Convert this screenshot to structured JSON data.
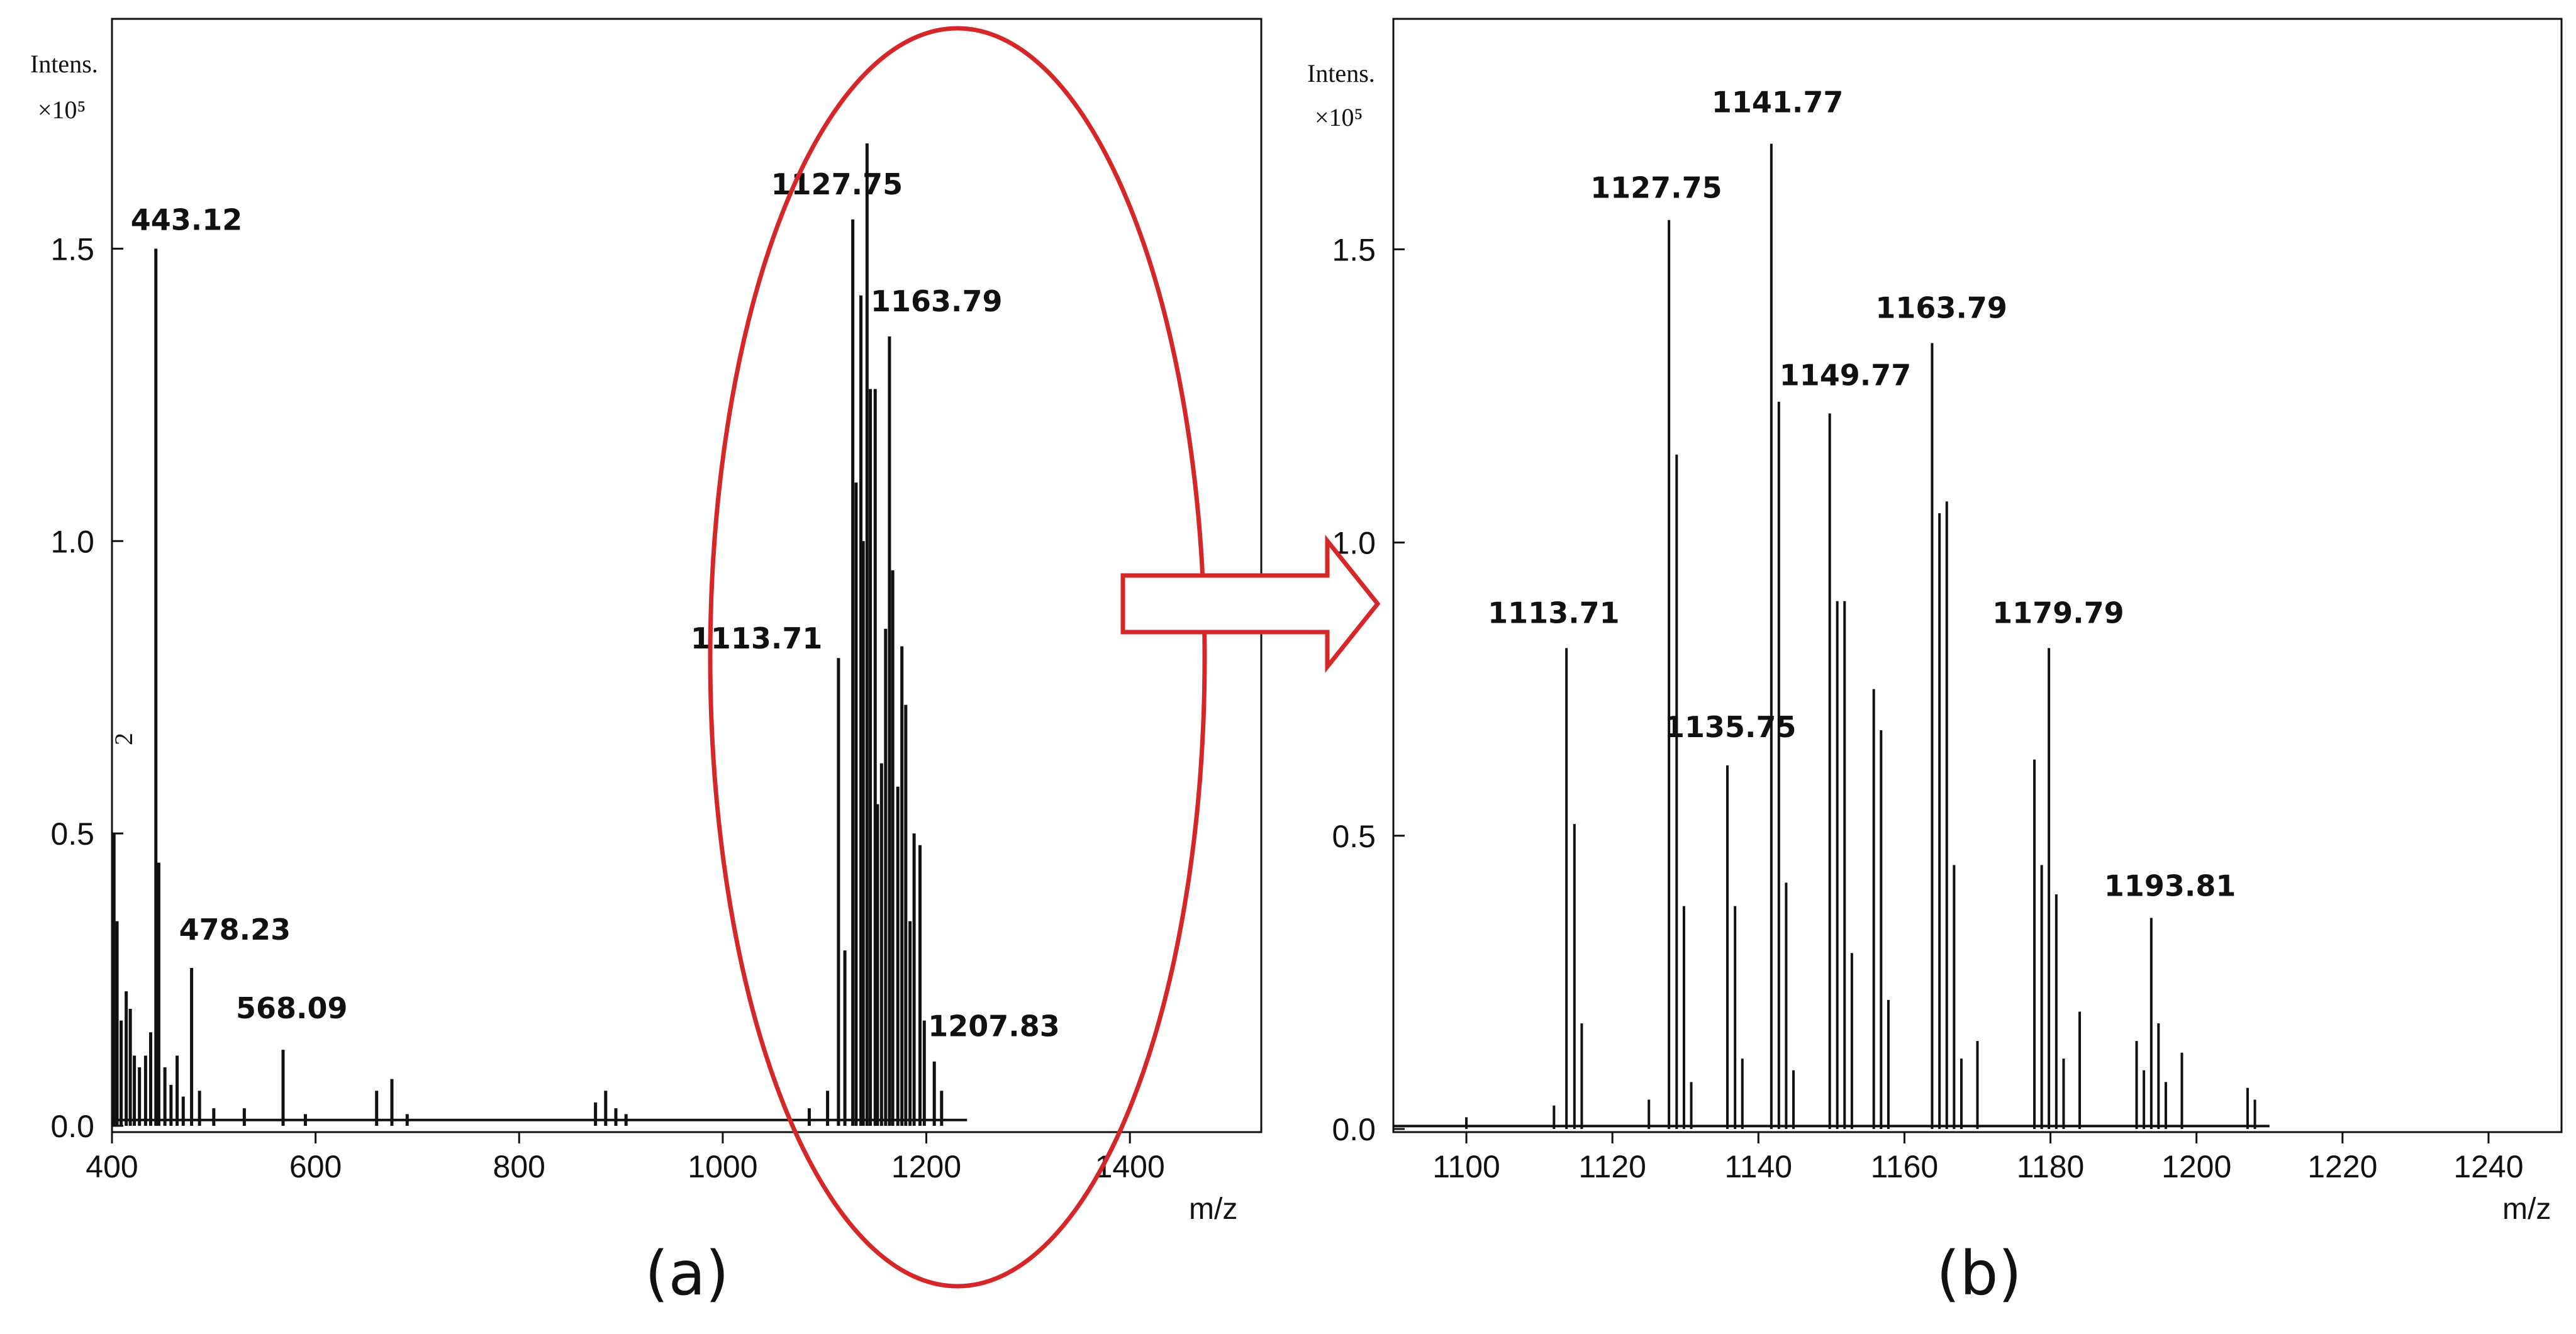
{
  "chart_data": [
    {
      "type": "line",
      "panel": "(a)",
      "title": "",
      "xlabel": "m/z",
      "ylabel": "Intens.",
      "yunit": "×10⁵",
      "xlim": [
        400,
        1500
      ],
      "ylim": [
        0,
        1.85
      ],
      "xticks": [
        400,
        600,
        800,
        1000,
        1200,
        1400
      ],
      "yticks": [
        0.0,
        0.5,
        1.0,
        1.5
      ],
      "ytick_labels": [
        "0.0",
        "0.5",
        "1.0",
        "1.5"
      ],
      "side_annotation": "2",
      "highlight": "ellipse around the 1100–1220 m/z cluster",
      "peaks": [
        {
          "x": 402,
          "y": 0.5
        },
        {
          "x": 405,
          "y": 0.35
        },
        {
          "x": 409,
          "y": 0.18
        },
        {
          "x": 414,
          "y": 0.23
        },
        {
          "x": 418,
          "y": 0.2
        },
        {
          "x": 422,
          "y": 0.12
        },
        {
          "x": 427,
          "y": 0.1
        },
        {
          "x": 433,
          "y": 0.12
        },
        {
          "x": 438,
          "y": 0.16
        },
        {
          "x": 443.12,
          "y": 1.5
        },
        {
          "x": 446,
          "y": 0.45
        },
        {
          "x": 452,
          "y": 0.1
        },
        {
          "x": 458,
          "y": 0.07
        },
        {
          "x": 464,
          "y": 0.12
        },
        {
          "x": 470,
          "y": 0.05
        },
        {
          "x": 478.23,
          "y": 0.27
        },
        {
          "x": 486,
          "y": 0.06
        },
        {
          "x": 500,
          "y": 0.03
        },
        {
          "x": 530,
          "y": 0.03
        },
        {
          "x": 568.09,
          "y": 0.13
        },
        {
          "x": 590,
          "y": 0.02
        },
        {
          "x": 660,
          "y": 0.06
        },
        {
          "x": 675,
          "y": 0.08
        },
        {
          "x": 690,
          "y": 0.02
        },
        {
          "x": 875,
          "y": 0.04
        },
        {
          "x": 885,
          "y": 0.06
        },
        {
          "x": 895,
          "y": 0.03
        },
        {
          "x": 905,
          "y": 0.02
        },
        {
          "x": 1085,
          "y": 0.03
        },
        {
          "x": 1103,
          "y": 0.06
        },
        {
          "x": 1113.71,
          "y": 0.8
        },
        {
          "x": 1120,
          "y": 0.3
        },
        {
          "x": 1127.75,
          "y": 1.55
        },
        {
          "x": 1131,
          "y": 1.1
        },
        {
          "x": 1135.75,
          "y": 1.42
        },
        {
          "x": 1138,
          "y": 1.0
        },
        {
          "x": 1141.77,
          "y": 1.68
        },
        {
          "x": 1145,
          "y": 1.26
        },
        {
          "x": 1149.77,
          "y": 1.26
        },
        {
          "x": 1152,
          "y": 0.55
        },
        {
          "x": 1156,
          "y": 0.62
        },
        {
          "x": 1160,
          "y": 0.85
        },
        {
          "x": 1163.79,
          "y": 1.35
        },
        {
          "x": 1167,
          "y": 0.95
        },
        {
          "x": 1172,
          "y": 0.58
        },
        {
          "x": 1176,
          "y": 0.82
        },
        {
          "x": 1179.79,
          "y": 0.72
        },
        {
          "x": 1184,
          "y": 0.35
        },
        {
          "x": 1188,
          "y": 0.5
        },
        {
          "x": 1193.81,
          "y": 0.48
        },
        {
          "x": 1198,
          "y": 0.18
        },
        {
          "x": 1207.83,
          "y": 0.11
        },
        {
          "x": 1215,
          "y": 0.06
        }
      ],
      "labels": [
        {
          "text": "443.12",
          "x": 443.12,
          "y": 1.5
        },
        {
          "text": "478.23",
          "x": 478.23,
          "y": 0.27
        },
        {
          "text": "568.09",
          "x": 568.09,
          "y": 0.13
        },
        {
          "text": "1127.75",
          "x": 1127.75,
          "y": 1.55
        },
        {
          "text": "1163.79",
          "x": 1163.79,
          "y": 1.35
        },
        {
          "text": "1113.71",
          "x": 1113.71,
          "y": 0.8
        },
        {
          "text": "1207.83",
          "x": 1207.83,
          "y": 0.11
        }
      ]
    },
    {
      "type": "line",
      "panel": "(b)",
      "title": "",
      "xlabel": "m/z",
      "ylabel": "Intens.",
      "yunit": "×10⁵",
      "xlim": [
        1090,
        1250
      ],
      "ylim": [
        0,
        1.85
      ],
      "xticks": [
        1100,
        1120,
        1140,
        1160,
        1180,
        1200,
        1220,
        1240
      ],
      "yticks": [
        0.0,
        0.5,
        1.0,
        1.5
      ],
      "ytick_labels": [
        "0.0",
        "0.5",
        "1.0",
        "1.5"
      ],
      "peaks": [
        {
          "x": 1100,
          "y": 0.02
        },
        {
          "x": 1112,
          "y": 0.04
        },
        {
          "x": 1113.71,
          "y": 0.82
        },
        {
          "x": 1114.8,
          "y": 0.52
        },
        {
          "x": 1115.8,
          "y": 0.18
        },
        {
          "x": 1125,
          "y": 0.05
        },
        {
          "x": 1127.75,
          "y": 1.55
        },
        {
          "x": 1128.8,
          "y": 1.15
        },
        {
          "x": 1129.8,
          "y": 0.38
        },
        {
          "x": 1130.8,
          "y": 0.08
        },
        {
          "x": 1135.75,
          "y": 0.62
        },
        {
          "x": 1136.8,
          "y": 0.38
        },
        {
          "x": 1137.8,
          "y": 0.12
        },
        {
          "x": 1141.77,
          "y": 1.68
        },
        {
          "x": 1142.8,
          "y": 1.24
        },
        {
          "x": 1143.8,
          "y": 0.42
        },
        {
          "x": 1144.8,
          "y": 0.1
        },
        {
          "x": 1149.77,
          "y": 1.22
        },
        {
          "x": 1150.8,
          "y": 0.9
        },
        {
          "x": 1151.8,
          "y": 0.9
        },
        {
          "x": 1152.8,
          "y": 0.3
        },
        {
          "x": 1155.8,
          "y": 0.75
        },
        {
          "x": 1156.8,
          "y": 0.68
        },
        {
          "x": 1157.8,
          "y": 0.22
        },
        {
          "x": 1163.79,
          "y": 1.34
        },
        {
          "x": 1164.8,
          "y": 1.05
        },
        {
          "x": 1165.8,
          "y": 1.07
        },
        {
          "x": 1166.8,
          "y": 0.45
        },
        {
          "x": 1167.8,
          "y": 0.12
        },
        {
          "x": 1170,
          "y": 0.15
        },
        {
          "x": 1177.8,
          "y": 0.63
        },
        {
          "x": 1178.8,
          "y": 0.45
        },
        {
          "x": 1179.79,
          "y": 0.82
        },
        {
          "x": 1180.8,
          "y": 0.4
        },
        {
          "x": 1181.8,
          "y": 0.12
        },
        {
          "x": 1184,
          "y": 0.2
        },
        {
          "x": 1191.8,
          "y": 0.15
        },
        {
          "x": 1192.8,
          "y": 0.1
        },
        {
          "x": 1193.81,
          "y": 0.36
        },
        {
          "x": 1194.8,
          "y": 0.18
        },
        {
          "x": 1195.8,
          "y": 0.08
        },
        {
          "x": 1198,
          "y": 0.13
        },
        {
          "x": 1207,
          "y": 0.07
        },
        {
          "x": 1208,
          "y": 0.05
        }
      ],
      "labels": [
        {
          "text": "1113.71",
          "x": 1113.71,
          "y": 0.82
        },
        {
          "text": "1127.75",
          "x": 1127.75,
          "y": 1.55
        },
        {
          "text": "1141.77",
          "x": 1141.77,
          "y": 1.68
        },
        {
          "text": "1135.75",
          "x": 1135.75,
          "y": 0.62
        },
        {
          "text": "1149.77",
          "x": 1149.77,
          "y": 1.22
        },
        {
          "text": "1163.79",
          "x": 1163.79,
          "y": 1.34
        },
        {
          "text": "1179.79",
          "x": 1179.79,
          "y": 0.82
        },
        {
          "text": "1193.81",
          "x": 1193.81,
          "y": 0.36
        }
      ]
    }
  ],
  "colors": {
    "ink": "#111111",
    "highlight": "#d62728",
    "arrow": "#d62728"
  }
}
